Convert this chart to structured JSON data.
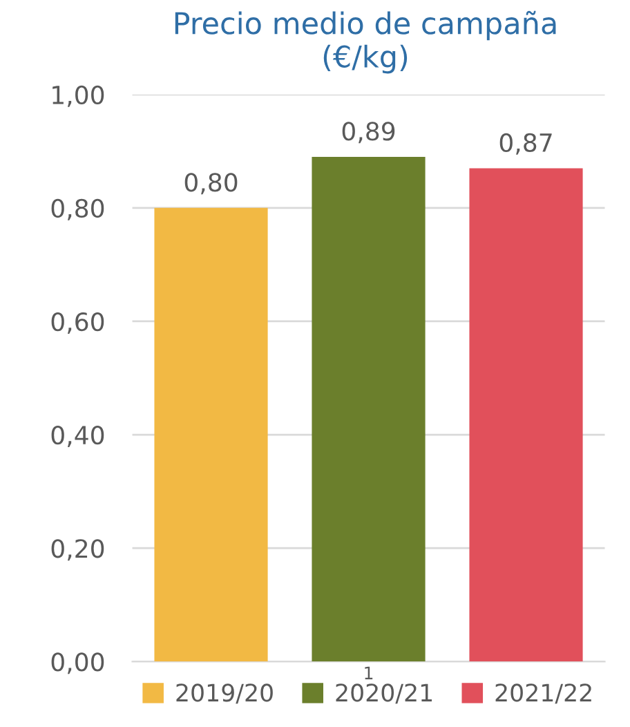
{
  "chart_data": {
    "type": "bar",
    "title": "Precio medio de campaña\n(€/kg)",
    "categories": [
      null,
      null,
      null
    ],
    "series": [
      {
        "name": "2019/20",
        "color": "#f2b944",
        "values": [
          0.8,
          null,
          null
        ],
        "value_labels": [
          "0,80",
          null,
          null
        ]
      },
      {
        "name": "2020/21",
        "color": "#6b7f2c",
        "values": [
          null,
          0.89,
          null
        ],
        "value_labels": [
          null,
          "0,89",
          null
        ]
      },
      {
        "name": "2021/22",
        "color": "#e1505b",
        "values": [
          null,
          null,
          0.87
        ],
        "value_labels": [
          null,
          null,
          "0,87"
        ]
      }
    ],
    "ylim": [
      0,
      1.0
    ],
    "yticks": [
      {
        "value": 0,
        "label": "0,00"
      },
      {
        "value": 0.2,
        "label": "0,20"
      },
      {
        "value": 0.4,
        "label": "0,40"
      },
      {
        "value": 0.6,
        "label": "0,60"
      },
      {
        "value": 0.8,
        "label": "0,80"
      },
      {
        "value": 1.0,
        "label": "1,00"
      }
    ],
    "grid": "y",
    "legend": "bottom",
    "annotations": [
      "1"
    ]
  }
}
